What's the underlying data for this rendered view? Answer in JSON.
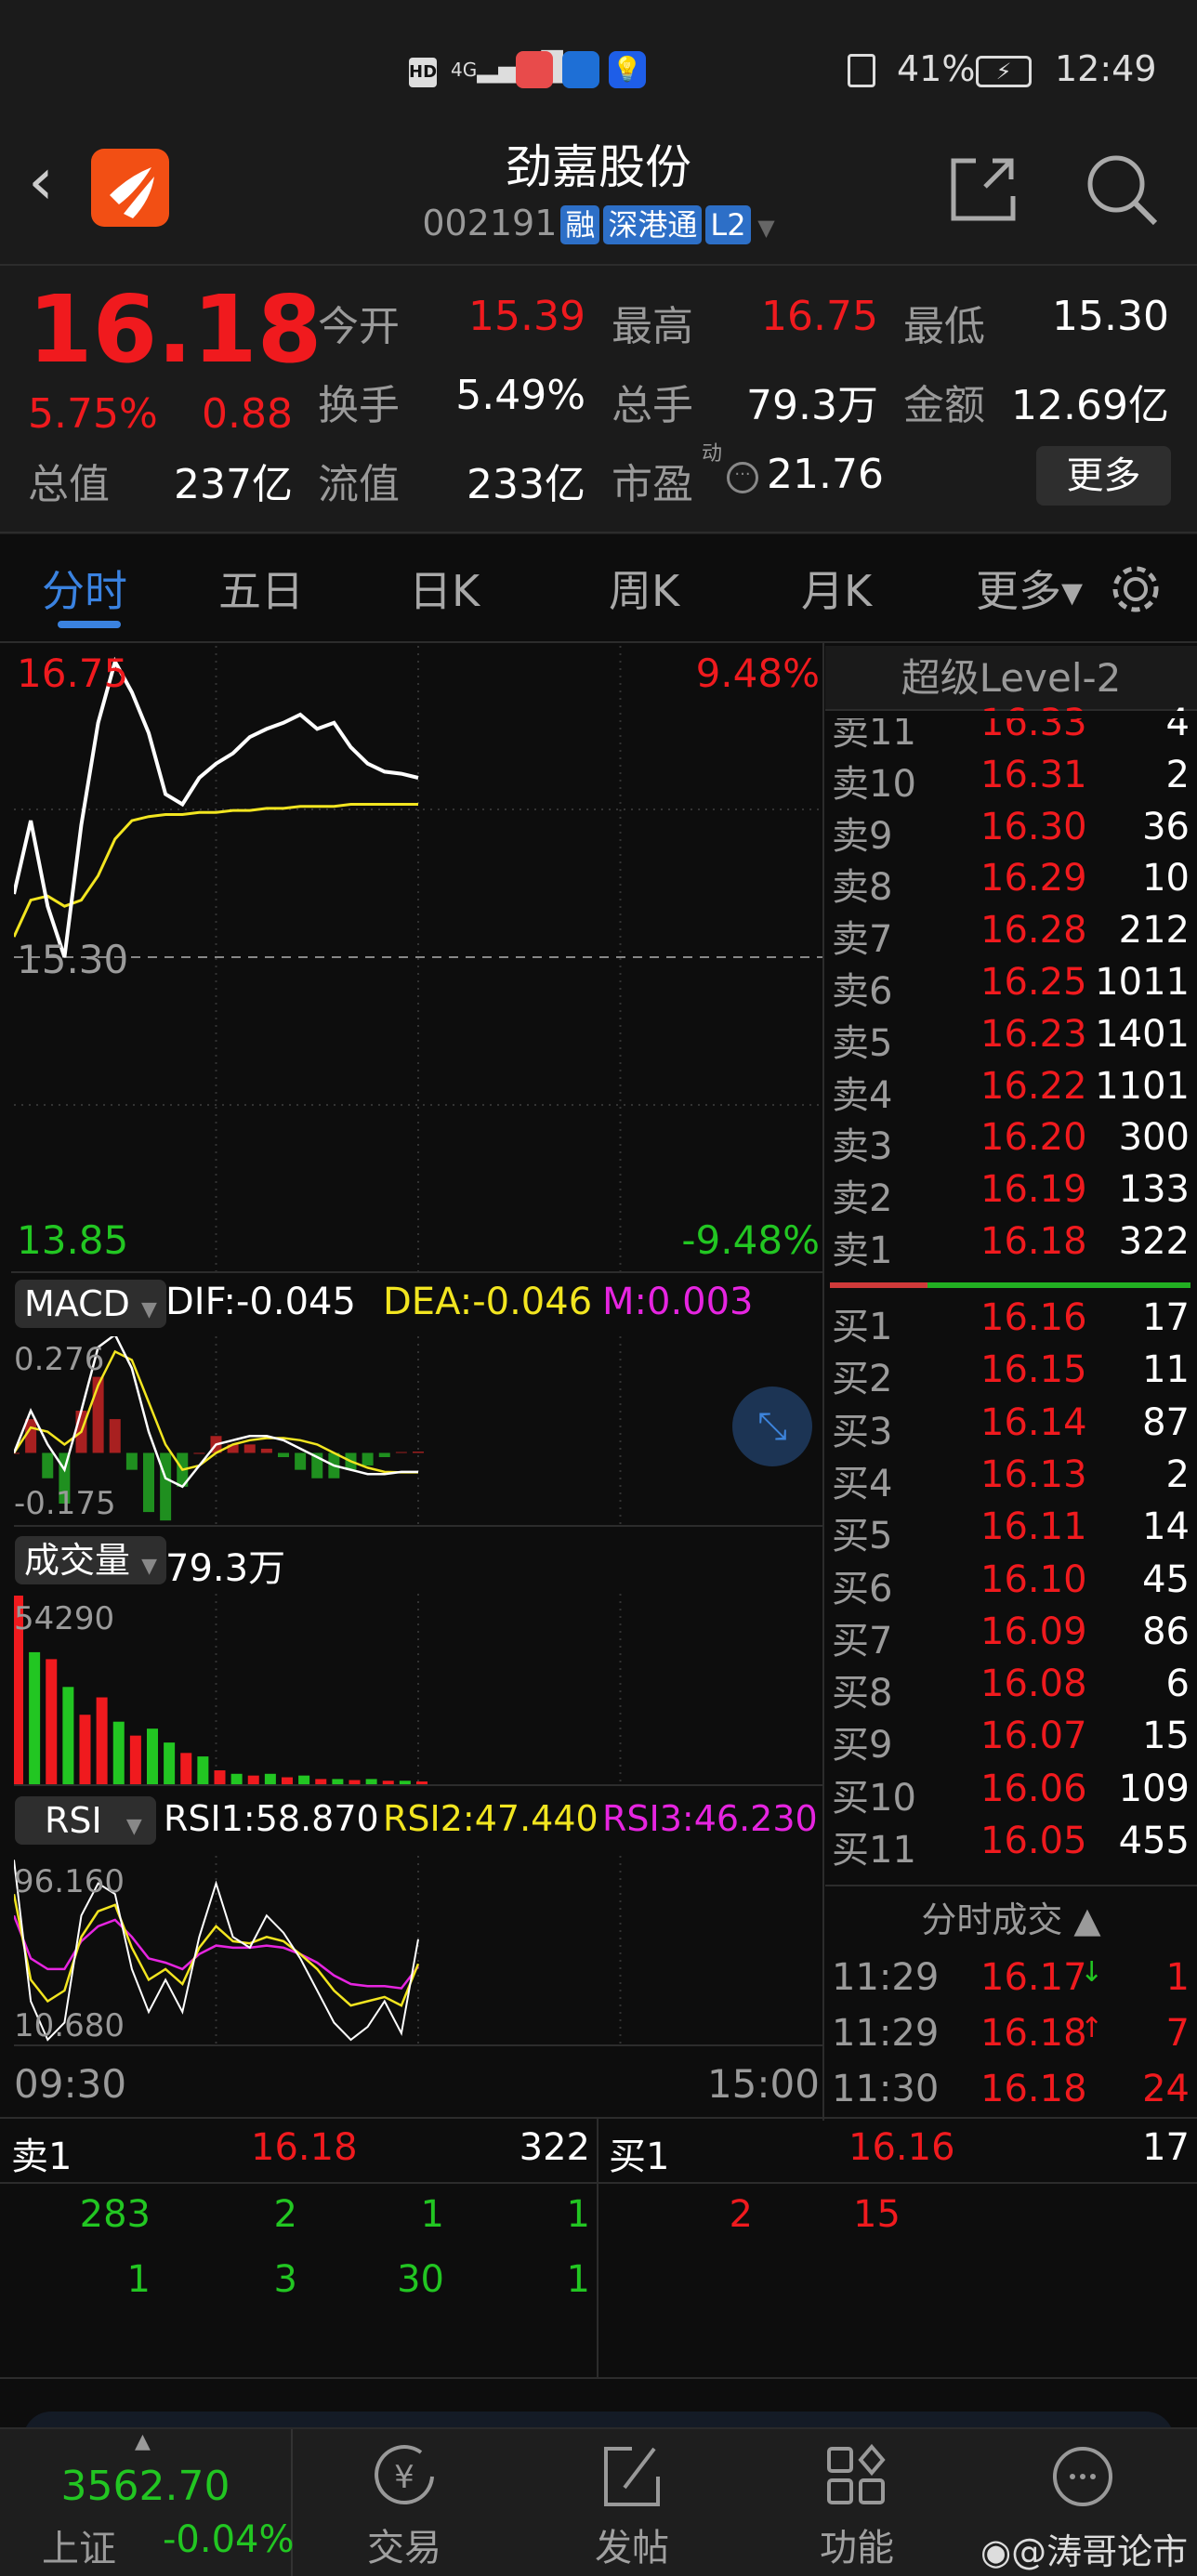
{
  "status_bar": {
    "time": "12:49",
    "battery": "41%",
    "network": "4G",
    "icons": [
      "hd-icon",
      "signal-icon",
      "huawei-app-icon",
      "bank-app-icon",
      "bulb-app-icon",
      "vibrate-icon",
      "battery-charging-icon"
    ]
  },
  "header": {
    "title": "劲嘉股份",
    "code": "002191",
    "tags": [
      "融",
      "深港通",
      "L2"
    ],
    "logo": "app-logo",
    "icons": [
      "back-icon",
      "share-icon",
      "search-icon"
    ]
  },
  "quote": {
    "price": "16.18",
    "change_pct": "5.75%",
    "change": "0.88",
    "open_label": "今开",
    "open": "15.39",
    "high_label": "最高",
    "high": "16.75",
    "low_label": "最低",
    "low": "15.30",
    "turnover_label": "换手",
    "turnover": "5.49%",
    "volume_label": "总手",
    "volume": "79.3万",
    "amount_label": "金额",
    "amount": "12.69亿",
    "mktcap_label": "总值",
    "mktcap": "237亿",
    "float_label": "流值",
    "float": "233亿",
    "pe_label": "市盈",
    "pe_sup": "动",
    "pe": "21.76",
    "more": "更多"
  },
  "tabs": [
    {
      "label": "分时",
      "active": true
    },
    {
      "label": "五日"
    },
    {
      "label": "日K"
    },
    {
      "label": "周K"
    },
    {
      "label": "月K"
    },
    {
      "label": "更多▾"
    }
  ],
  "colors": {
    "up": "#f01a1e",
    "down": "#22c622",
    "accent": "#3a82e0",
    "price_line": "#ffffff",
    "avg_line": "#f2e520",
    "rsi3": "#e625e0"
  },
  "chart_data": [
    {
      "type": "line",
      "name_hint": "intraday",
      "ylim": [
        13.85,
        16.75
      ],
      "y_labels": {
        "top": "16.75",
        "mid": "15.30",
        "bottom": "13.85",
        "pct_top": "9.48%",
        "pct_bottom": "-9.48%"
      },
      "xlim": [
        "09:30",
        "15:00"
      ],
      "x_labels": [
        "09:30",
        "15:00"
      ],
      "x": [
        "09:30",
        "09:35",
        "09:40",
        "09:45",
        "09:50",
        "09:55",
        "10:00",
        "10:05",
        "10:10",
        "10:15",
        "10:20",
        "10:25",
        "10:30",
        "10:35",
        "10:40",
        "10:45",
        "10:50",
        "10:55",
        "11:00",
        "11:05",
        "11:10",
        "11:15",
        "11:20",
        "11:25",
        "11:30"
      ],
      "price": [
        15.61,
        15.97,
        15.55,
        15.3,
        15.95,
        16.45,
        16.75,
        16.6,
        16.4,
        16.1,
        16.05,
        16.18,
        16.25,
        16.3,
        16.38,
        16.42,
        16.45,
        16.49,
        16.42,
        16.45,
        16.33,
        16.25,
        16.21,
        16.2,
        16.18
      ],
      "avg": [
        15.4,
        15.58,
        15.6,
        15.55,
        15.58,
        15.7,
        15.88,
        15.97,
        15.99,
        16.0,
        16.0,
        16.01,
        16.01,
        16.02,
        16.02,
        16.03,
        16.03,
        16.04,
        16.04,
        16.04,
        16.05,
        16.05,
        16.05,
        16.05,
        16.05
      ]
    },
    {
      "type": "line",
      "indicator": "MACD",
      "ylim": [
        -0.175,
        0.276
      ],
      "y_labels": [
        "0.276",
        "-0.175"
      ],
      "dif": [
        0.0,
        0.1,
        0.02,
        -0.04,
        0.1,
        0.25,
        0.28,
        0.2,
        0.05,
        -0.06,
        -0.08,
        -0.03,
        0.02,
        0.03,
        0.04,
        0.04,
        0.03,
        0.01,
        -0.01,
        -0.03,
        -0.04,
        -0.05,
        -0.05,
        -0.045,
        -0.045
      ],
      "dea": [
        0.0,
        0.06,
        0.05,
        0.02,
        0.05,
        0.16,
        0.24,
        0.22,
        0.12,
        0.02,
        -0.04,
        -0.03,
        0.0,
        0.02,
        0.03,
        0.035,
        0.035,
        0.03,
        0.02,
        0.0,
        -0.02,
        -0.035,
        -0.045,
        -0.046,
        -0.046
      ],
      "hist": [
        0.0,
        0.08,
        -0.06,
        -0.12,
        0.1,
        0.18,
        0.08,
        -0.04,
        -0.14,
        -0.16,
        -0.08,
        0.0,
        0.04,
        0.02,
        0.02,
        0.01,
        -0.01,
        -0.04,
        -0.06,
        -0.06,
        -0.04,
        -0.03,
        -0.01,
        0.002,
        0.003
      ]
    },
    {
      "type": "bar",
      "indicator": "成交量",
      "ylim": [
        0,
        54290
      ],
      "y_labels": [
        "54290"
      ],
      "values": [
        54290,
        38000,
        36000,
        28000,
        20000,
        25000,
        18000,
        14000,
        16000,
        12000,
        9000,
        8000,
        4000,
        3000,
        2500,
        3000,
        2000,
        2500,
        1500,
        1500,
        1200,
        1500,
        1000,
        1000,
        800
      ],
      "up": [
        true,
        false,
        true,
        false,
        true,
        true,
        false,
        true,
        false,
        false,
        true,
        false,
        true,
        false,
        true,
        false,
        true,
        false,
        true,
        false,
        true,
        false,
        true,
        false,
        true
      ]
    },
    {
      "type": "line",
      "indicator": "RSI",
      "ylim": [
        10.68,
        96.16
      ],
      "y_labels": [
        "96.160",
        "10.680"
      ],
      "rsi1": [
        96,
        30,
        12,
        20,
        70,
        85,
        80,
        45,
        25,
        40,
        25,
        60,
        85,
        60,
        55,
        70,
        62,
        50,
        35,
        20,
        12,
        18,
        30,
        15,
        58.87
      ],
      "rsi2": [
        80,
        40,
        30,
        35,
        60,
        72,
        75,
        55,
        40,
        45,
        38,
        55,
        65,
        58,
        57,
        60,
        58,
        52,
        45,
        35,
        28,
        30,
        32,
        28,
        47.44
      ],
      "rsi3": [
        70,
        50,
        45,
        45,
        58,
        65,
        68,
        60,
        50,
        48,
        45,
        52,
        56,
        55,
        55,
        56,
        55,
        52,
        48,
        42,
        38,
        37,
        37,
        36,
        46.23
      ]
    }
  ],
  "macd": {
    "selector": "MACD",
    "dif": "DIF:-0.045",
    "dea": "DEA:-0.046",
    "m": "M:0.003"
  },
  "vol": {
    "selector": "成交量",
    "value": "79.3万"
  },
  "rsi": {
    "selector": "RSI",
    "rsi1": "RSI1:58.870",
    "rsi2": "RSI2:47.440",
    "rsi3": "RSI3:46.230"
  },
  "orderbook": {
    "title": "超级Level-2",
    "asks": [
      [
        "卖11",
        "16.33",
        "4"
      ],
      [
        "卖10",
        "16.31",
        "2"
      ],
      [
        "卖9",
        "16.30",
        "36"
      ],
      [
        "卖8",
        "16.29",
        "10"
      ],
      [
        "卖7",
        "16.28",
        "212"
      ],
      [
        "卖6",
        "16.25",
        "1011"
      ],
      [
        "卖5",
        "16.23",
        "1401"
      ],
      [
        "卖4",
        "16.22",
        "1101"
      ],
      [
        "卖3",
        "16.20",
        "300"
      ],
      [
        "卖2",
        "16.19",
        "133"
      ],
      [
        "卖1",
        "16.18",
        "322"
      ]
    ],
    "bids": [
      [
        "买1",
        "16.16",
        "17"
      ],
      [
        "买2",
        "16.15",
        "11"
      ],
      [
        "买3",
        "16.14",
        "87"
      ],
      [
        "买4",
        "16.13",
        "2"
      ],
      [
        "买5",
        "16.11",
        "14"
      ],
      [
        "买6",
        "16.10",
        "45"
      ],
      [
        "买7",
        "16.09",
        "86"
      ],
      [
        "买8",
        "16.08",
        "6"
      ],
      [
        "买9",
        "16.07",
        "15"
      ],
      [
        "买10",
        "16.06",
        "109"
      ],
      [
        "买11",
        "16.05",
        "455"
      ]
    ],
    "bid_ratio": 0.27
  },
  "ticks": {
    "title": "分时成交 ▲",
    "rows": [
      [
        "11:29",
        "16.17",
        "↓",
        "1"
      ],
      [
        "11:29",
        "16.18",
        "↑",
        "7"
      ],
      [
        "11:30",
        "16.18",
        "",
        "24"
      ]
    ]
  },
  "queue": {
    "ask_label": "卖1",
    "ask_price": "16.18",
    "ask_qty": "322",
    "bid_label": "买1",
    "bid_price": "16.16",
    "bid_qty": "17",
    "ask_orders": [
      [
        "283",
        "2",
        "1",
        "1"
      ],
      [
        "1",
        "3",
        "30",
        "1"
      ]
    ],
    "bid_orders": [
      "2",
      "15"
    ]
  },
  "bottom_nav": {
    "index_value": "3562.70",
    "index_name": "上证",
    "index_change": "-0.04%",
    "items": [
      {
        "label": "交易",
        "icon": "trade-yen-icon"
      },
      {
        "label": "发帖",
        "icon": "post-edit-icon"
      },
      {
        "label": "功能",
        "icon": "functions-grid-icon"
      },
      {
        "label": "",
        "icon": "more-dots-icon"
      }
    ]
  },
  "watermark": "@涛哥论市"
}
